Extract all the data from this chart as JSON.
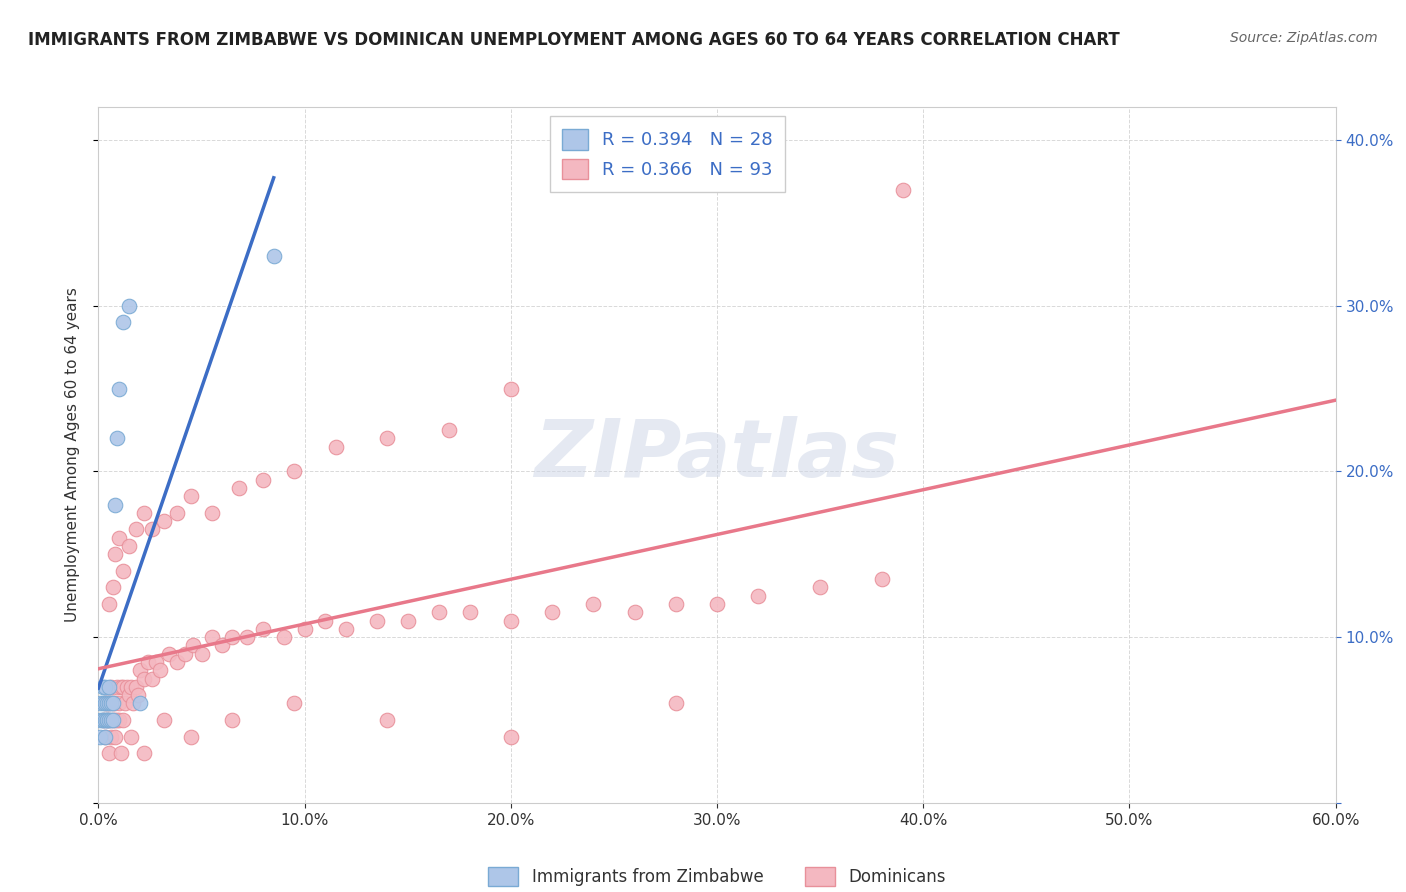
{
  "title": "IMMIGRANTS FROM ZIMBABWE VS DOMINICAN UNEMPLOYMENT AMONG AGES 60 TO 64 YEARS CORRELATION CHART",
  "source": "Source: ZipAtlas.com",
  "ylabel": "Unemployment Among Ages 60 to 64 years",
  "xlim": [
    0.0,
    0.6
  ],
  "ylim": [
    0.0,
    0.42
  ],
  "xticks": [
    0.0,
    0.1,
    0.2,
    0.3,
    0.4,
    0.5,
    0.6
  ],
  "xticklabels": [
    "0.0%",
    "",
    "",
    "",
    "",
    "",
    "60.0%"
  ],
  "yticks": [
    0.0,
    0.1,
    0.2,
    0.3,
    0.4
  ],
  "yticklabels_right": [
    "",
    "10.0%",
    "20.0%",
    "30.0%",
    "40.0%"
  ],
  "R_color": "#3c6dc5",
  "watermark": "ZIPatlas",
  "watermark_color": "#d0d8e8",
  "dot_color_zim": "#aec6e8",
  "dot_color_dom": "#f4b8c1",
  "dot_edge_zim": "#7aaad4",
  "dot_edge_dom": "#e8909a",
  "line_color_zim": "#3c6dc5",
  "line_color_dom": "#e8788a",
  "background_color": "#ffffff",
  "grid_color": "#d0d0d0",
  "zim_x": [
    0.001,
    0.001,
    0.001,
    0.002,
    0.002,
    0.002,
    0.002,
    0.003,
    0.003,
    0.003,
    0.003,
    0.004,
    0.004,
    0.004,
    0.005,
    0.005,
    0.005,
    0.006,
    0.006,
    0.007,
    0.007,
    0.008,
    0.009,
    0.01,
    0.012,
    0.015,
    0.02,
    0.085
  ],
  "zim_y": [
    0.05,
    0.04,
    0.06,
    0.05,
    0.07,
    0.05,
    0.06,
    0.06,
    0.05,
    0.07,
    0.04,
    0.05,
    0.06,
    0.05,
    0.07,
    0.05,
    0.06,
    0.05,
    0.06,
    0.05,
    0.06,
    0.18,
    0.22,
    0.25,
    0.29,
    0.3,
    0.06,
    0.33
  ],
  "dom_x": [
    0.002,
    0.003,
    0.003,
    0.004,
    0.004,
    0.005,
    0.005,
    0.006,
    0.006,
    0.007,
    0.007,
    0.008,
    0.008,
    0.009,
    0.009,
    0.01,
    0.01,
    0.011,
    0.012,
    0.012,
    0.013,
    0.014,
    0.015,
    0.016,
    0.017,
    0.018,
    0.019,
    0.02,
    0.022,
    0.024,
    0.026,
    0.028,
    0.03,
    0.034,
    0.038,
    0.042,
    0.046,
    0.05,
    0.055,
    0.06,
    0.065,
    0.072,
    0.08,
    0.09,
    0.1,
    0.11,
    0.12,
    0.135,
    0.15,
    0.165,
    0.18,
    0.2,
    0.22,
    0.24,
    0.26,
    0.28,
    0.3,
    0.32,
    0.35,
    0.38,
    0.005,
    0.007,
    0.008,
    0.01,
    0.012,
    0.015,
    0.018,
    0.022,
    0.026,
    0.032,
    0.038,
    0.045,
    0.055,
    0.068,
    0.08,
    0.095,
    0.115,
    0.14,
    0.17,
    0.2,
    0.005,
    0.008,
    0.011,
    0.016,
    0.022,
    0.032,
    0.045,
    0.065,
    0.095,
    0.14,
    0.2,
    0.28,
    0.39
  ],
  "dom_y": [
    0.05,
    0.04,
    0.06,
    0.05,
    0.06,
    0.05,
    0.06,
    0.04,
    0.07,
    0.05,
    0.06,
    0.05,
    0.06,
    0.05,
    0.07,
    0.05,
    0.06,
    0.07,
    0.05,
    0.07,
    0.06,
    0.07,
    0.065,
    0.07,
    0.06,
    0.07,
    0.065,
    0.08,
    0.075,
    0.085,
    0.075,
    0.085,
    0.08,
    0.09,
    0.085,
    0.09,
    0.095,
    0.09,
    0.1,
    0.095,
    0.1,
    0.1,
    0.105,
    0.1,
    0.105,
    0.11,
    0.105,
    0.11,
    0.11,
    0.115,
    0.115,
    0.11,
    0.115,
    0.12,
    0.115,
    0.12,
    0.12,
    0.125,
    0.13,
    0.135,
    0.12,
    0.13,
    0.15,
    0.16,
    0.14,
    0.155,
    0.165,
    0.175,
    0.165,
    0.17,
    0.175,
    0.185,
    0.175,
    0.19,
    0.195,
    0.2,
    0.215,
    0.22,
    0.225,
    0.25,
    0.03,
    0.04,
    0.03,
    0.04,
    0.03,
    0.05,
    0.04,
    0.05,
    0.06,
    0.05,
    0.04,
    0.06,
    0.37
  ]
}
